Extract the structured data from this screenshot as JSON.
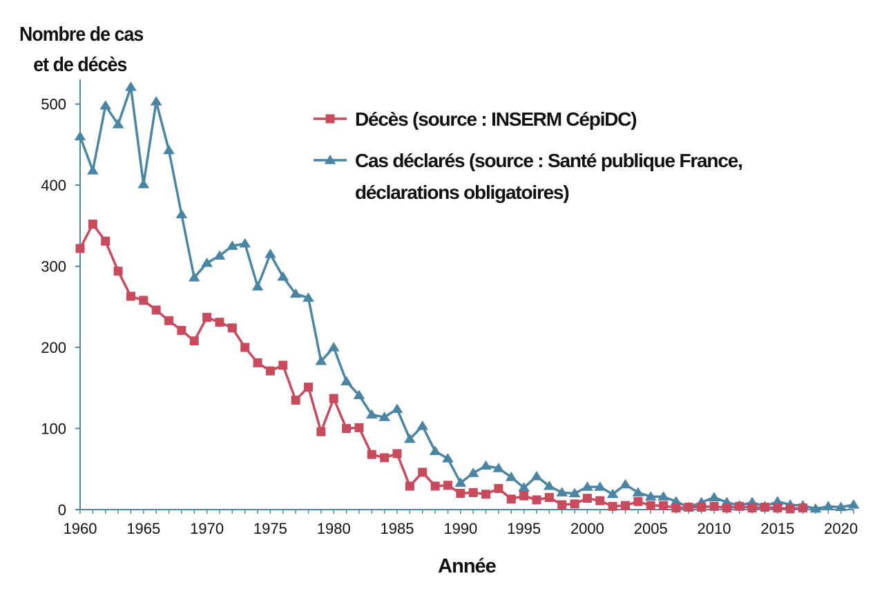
{
  "chart_data": {
    "type": "line",
    "ylabel_lines": [
      "Nombre de cas",
      "et de décès"
    ],
    "xlabel": "Année",
    "xlim": [
      1960,
      2021
    ],
    "ylim": [
      0,
      550
    ],
    "xticks": [
      1960,
      1965,
      1970,
      1975,
      1980,
      1985,
      1990,
      1995,
      2000,
      2005,
      2010,
      2015,
      2020
    ],
    "yticks": [
      0,
      100,
      200,
      300,
      400,
      500
    ],
    "x": [
      1960,
      1961,
      1962,
      1963,
      1964,
      1965,
      1966,
      1967,
      1968,
      1969,
      1970,
      1971,
      1972,
      1973,
      1974,
      1975,
      1976,
      1977,
      1978,
      1979,
      1980,
      1981,
      1982,
      1983,
      1984,
      1985,
      1986,
      1987,
      1988,
      1989,
      1990,
      1991,
      1992,
      1993,
      1994,
      1995,
      1996,
      1997,
      1998,
      1999,
      2000,
      2001,
      2002,
      2003,
      2004,
      2005,
      2006,
      2007,
      2008,
      2009,
      2010,
      2011,
      2012,
      2013,
      2014,
      2015,
      2016,
      2017,
      2018,
      2019,
      2020,
      2021
    ],
    "series": [
      {
        "name": "Décès (source : INSERM CépiDC)",
        "color": "#c94a5c",
        "marker": "square",
        "values": [
          322,
          352,
          331,
          294,
          263,
          258,
          246,
          233,
          221,
          208,
          237,
          231,
          224,
          200,
          181,
          171,
          178,
          135,
          151,
          96,
          137,
          100,
          101,
          68,
          64,
          69,
          29,
          46,
          29,
          30,
          20,
          21,
          19,
          26,
          13,
          17,
          12,
          15,
          6,
          7,
          14,
          11,
          4,
          5,
          10,
          5,
          5,
          2,
          3,
          3,
          4,
          2,
          4,
          2,
          3,
          2,
          1,
          2,
          null,
          null,
          null,
          null
        ]
      },
      {
        "name": "Cas déclarés (source : Santé publique France, déclarations obligatoires)",
        "name_lines": [
          "Cas déclarés (source : Santé publique France,",
          "déclarations obligatoires)"
        ],
        "color": "#4a86a4",
        "marker": "triangle",
        "values": [
          460,
          418,
          498,
          475,
          521,
          401,
          503,
          443,
          364,
          286,
          304,
          313,
          325,
          328,
          275,
          315,
          287,
          266,
          261,
          183,
          200,
          158,
          141,
          117,
          114,
          124,
          87,
          103,
          72,
          63,
          33,
          45,
          54,
          51,
          40,
          27,
          41,
          29,
          21,
          20,
          28,
          28,
          19,
          31,
          21,
          16,
          16,
          10,
          3,
          9,
          15,
          9,
          5,
          9,
          4,
          10,
          6,
          5,
          1,
          4,
          3,
          6
        ]
      }
    ]
  }
}
